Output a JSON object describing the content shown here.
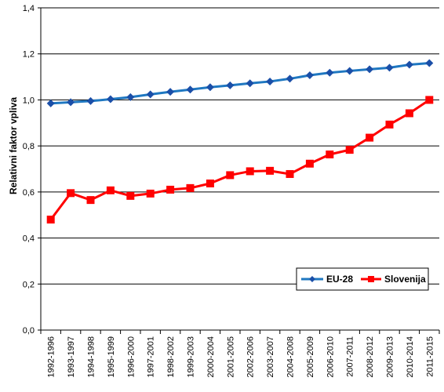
{
  "chart_data": {
    "type": "line",
    "title": "",
    "xlabel": "",
    "ylabel": "Relativni faktor vpliva",
    "categories": [
      "1992-1996",
      "1993-1997",
      "1994-1998",
      "1995-1999",
      "1996-2000",
      "1997-2001",
      "1998-2002",
      "1999-2003",
      "2000-2004",
      "2001-2005",
      "2002-2006",
      "2003-2007",
      "2004-2008",
      "2005-2009",
      "2006-2010",
      "2007-2011",
      "2008-2012",
      "2009-2013",
      "2010-2014",
      "2011-2015"
    ],
    "ylim": [
      0,
      1.4
    ],
    "yticks": [
      "0,0",
      "0,2",
      "0,4",
      "0,6",
      "0,8",
      "1,0",
      "1,2",
      "1,4"
    ],
    "ytick_values": [
      0,
      0.2,
      0.4,
      0.6,
      0.8,
      1.0,
      1.2,
      1.4
    ],
    "grid": "horizontal",
    "legend_position": "bottom-right",
    "series": [
      {
        "name": "EU-28",
        "color": "#1f78c1",
        "marker": "diamond",
        "values": [
          0.985,
          0.99,
          0.995,
          1.003,
          1.012,
          1.024,
          1.035,
          1.045,
          1.055,
          1.063,
          1.072,
          1.08,
          1.092,
          1.107,
          1.118,
          1.126,
          1.133,
          1.14,
          1.153,
          1.16
        ]
      },
      {
        "name": "Slovenija",
        "color": "#ff0000",
        "marker": "square",
        "values": [
          0.48,
          0.595,
          0.565,
          0.607,
          0.583,
          0.593,
          0.61,
          0.617,
          0.637,
          0.673,
          0.69,
          0.692,
          0.678,
          0.723,
          0.763,
          0.783,
          0.836,
          0.893,
          0.942,
          1.0
        ]
      }
    ]
  }
}
